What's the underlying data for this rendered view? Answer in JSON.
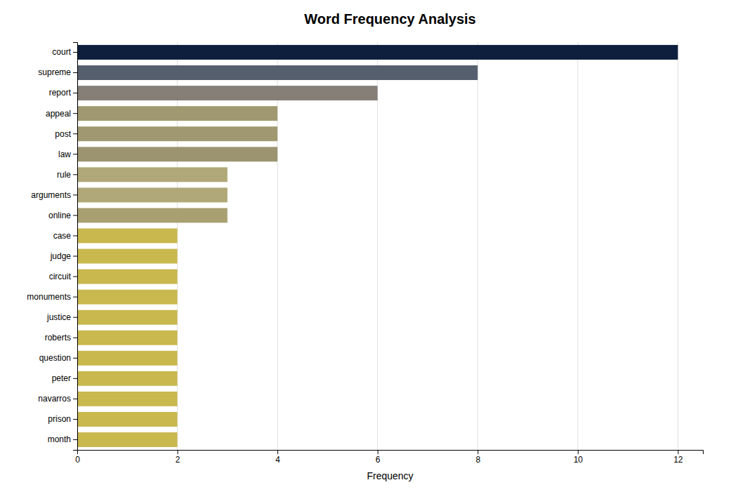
{
  "chart_data": {
    "type": "bar",
    "orientation": "horizontal",
    "title": "Word Frequency Analysis",
    "xlabel": "Frequency",
    "categories": [
      "court",
      "supreme",
      "report",
      "appeal",
      "post",
      "law",
      "rule",
      "arguments",
      "online",
      "case",
      "judge",
      "circuit",
      "monuments",
      "justice",
      "roberts",
      "question",
      "peter",
      "navarros",
      "prison",
      "month"
    ],
    "values": [
      12,
      8,
      6,
      4,
      4,
      4,
      3,
      3,
      3,
      2,
      2,
      2,
      2,
      2,
      2,
      2,
      2,
      2,
      2,
      2
    ],
    "colors": [
      "#0d1f3c",
      "#565f6d",
      "#857f78",
      "#a09870",
      "#a09870",
      "#9c9470",
      "#b0a878",
      "#b0a878",
      "#a8a070",
      "#c8b84e",
      "#c8b84e",
      "#c8b84e",
      "#c8b84e",
      "#c8b84e",
      "#c8b84e",
      "#c8b84e",
      "#c8b84e",
      "#c8b84e",
      "#c8b84e",
      "#c8b84e"
    ],
    "xlim": [
      0,
      12.5
    ],
    "xticks": [
      0,
      2,
      4,
      6,
      8,
      10,
      12
    ],
    "grid": true
  }
}
